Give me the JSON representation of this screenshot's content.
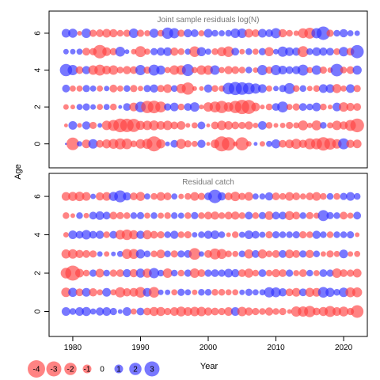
{
  "chart_data": {
    "type": "scatter",
    "bubble_chart": true,
    "shared_axes": {
      "xlabel": "Year",
      "ylabel": "Age",
      "xlim": [
        1976.5,
        2023.5
      ],
      "x_ticks": [
        1980,
        1990,
        2000,
        2010,
        2020
      ],
      "y_ticks": [
        0,
        2,
        4,
        6
      ],
      "ylim": [
        -1.3,
        7.2
      ]
    },
    "year_start": 1979,
    "year_end": 2022,
    "ages": [
      0,
      1,
      2,
      3,
      4,
      5,
      6
    ],
    "colors": {
      "negative": "#ff4040",
      "positive": "#3030ff"
    },
    "panels": [
      {
        "title": "Joint sample residuals log(N)",
        "residuals": [
          [
            0.0,
            -2.1,
            0.4,
            -1.0,
            1.2,
            -0.8,
            -1.1,
            -1.3,
            -1.6,
            -1.5,
            -0.6,
            -1.2,
            -1.4,
            -3.0,
            -1.1,
            0.3,
            0.8,
            -1.3,
            -0.7,
            -0.5,
            0.9,
            -0.2,
            -1.0,
            -3.0,
            -2.4,
            -0.3,
            -2.3,
            -0.4,
            0.2,
            -0.4,
            0.5,
            1.1,
            -0.8,
            -1.0,
            -1.4,
            -0.9,
            -1.6,
            -1.6,
            -2.4,
            -1.8,
            -1.2,
            1.6,
            -0.9,
            -1.0
          ],
          [
            -0.2,
            1.0,
            -0.3,
            0.9,
            -0.7,
            0.3,
            -1.2,
            -1.6,
            -2.5,
            -2.4,
            -2.3,
            -1.1,
            -1.2,
            -1.3,
            -1.0,
            -1.2,
            -0.8,
            -1.0,
            -0.3,
            -0.5,
            0.8,
            -0.2,
            -0.8,
            -1.2,
            -1.0,
            -0.8,
            -0.7,
            -0.9,
            -0.4,
            1.0,
            -0.6,
            -0.3,
            -0.4,
            -0.7,
            -0.5,
            -1.3,
            -0.4,
            -1.3,
            0.6,
            -0.5,
            -1.2,
            -0.9,
            -1.6,
            -2.5
          ],
          [
            -0.4,
            -0.3,
            0.5,
            0.7,
            0.4,
            -0.5,
            0.5,
            -0.6,
            0.2,
            0.8,
            -1.0,
            1.5,
            -2.0,
            -2.1,
            -1.6,
            0.7,
            1.0,
            -0.6,
            0.8,
            1.2,
            -0.3,
            -1.2,
            -1.6,
            -2.0,
            -1.2,
            -2.0,
            -2.7,
            -2.6,
            -1.0,
            -0.3,
            -0.6,
            0.8,
            1.6,
            -0.5,
            -0.7,
            0.8,
            0.6,
            1.0,
            -0.6,
            -0.3,
            1.0,
            -1.2,
            -0.9,
            -0.8
          ],
          [
            0.8,
            -0.5,
            -0.5,
            0.7,
            0.5,
            -0.5,
            0.4,
            -0.8,
            -0.5,
            0.6,
            -0.7,
            -0.4,
            0.7,
            0.9,
            -0.7,
            -1.0,
            0.6,
            -1.2,
            -2.0,
            -0.3,
            -0.3,
            0.9,
            -0.6,
            -0.5,
            1.8,
            2.3,
            2.1,
            1.8,
            1.4,
            1.0,
            -0.5,
            0.4,
            0.7,
            1.6,
            -0.6,
            0.6,
            -0.4,
            -0.6,
            1.0,
            1.0,
            -1.1,
            -0.5,
            1.0,
            -0.7
          ],
          [
            2.0,
            1.4,
            -0.8,
            0.9,
            -1.2,
            -1.6,
            -1.0,
            -1.2,
            -0.6,
            -0.9,
            -0.8,
            1.4,
            -0.7,
            1.6,
            1.1,
            -0.5,
            -1.2,
            -1.2,
            1.9,
            -0.5,
            -1.2,
            -1.2,
            1.2,
            -0.5,
            -0.9,
            -0.8,
            -0.6,
            0.6,
            -0.4,
            1.4,
            -0.7,
            1.4,
            1.0,
            0.8,
            0.9,
            1.6,
            -0.5,
            1.2,
            -0.7,
            -0.4,
            2.1,
            -0.6,
            -0.8,
            1.1
          ],
          [
            0.4,
            0.4,
            0.5,
            -0.8,
            -0.7,
            -2.4,
            -1.0,
            -0.7,
            1.3,
            0.3,
            -0.4,
            -1.6,
            -0.5,
            0.7,
            0.9,
            1.0,
            -0.9,
            -0.6,
            0.5,
            -1.5,
            1.1,
            0.5,
            -0.6,
            -1.1,
            -1.5,
            0.8,
            -0.4,
            0.6,
            -0.5,
            0.7,
            -1.1,
            0.4,
            1.4,
            1.0,
            0.9,
            -1.6,
            0.6,
            1.0,
            0.9,
            0.8,
            -0.6,
            1.2,
            -0.8,
            2.3
          ],
          [
            1.0,
            1.1,
            -0.3,
            1.2,
            -0.7,
            -0.8,
            -1.0,
            -0.9,
            -0.6,
            -0.7,
            1.2,
            -0.7,
            -0.5,
            1.1,
            -0.6,
            1.7,
            1.4,
            -0.7,
            0.9,
            0.8,
            -0.5,
            1.0,
            0.6,
            0.5,
            0.6,
            1.2,
            1.2,
            -1.0,
            -0.8,
            1.0,
            0.8,
            1.4,
            -0.9,
            -0.6,
            -0.4,
            -1.3,
            -1.6,
            1.4,
            2.4,
            -0.7,
            0.6,
            0.9,
            0.5,
            0.4
          ]
        ]
      },
      {
        "title": "Residual catch",
        "residuals": [
          [
            1.0,
            0.6,
            1.0,
            1.1,
            0.5,
            0.9,
            1.0,
            0.7,
            0.3,
            1.0,
            -0.5,
            0.8,
            -0.8,
            -1.1,
            -1.1,
            -0.7,
            -1.0,
            -1.3,
            -1.0,
            -1.2,
            -1.2,
            -0.9,
            -0.8,
            -0.7,
            -1.0,
            1.0,
            -1.2,
            -0.9,
            -0.7,
            -0.6,
            -0.9,
            -0.6,
            -0.7,
            -0.3,
            -1.4,
            -1.4,
            -1.7,
            -0.8,
            -1.1,
            -1.6,
            -1.0,
            -1.3,
            -0.7,
            -2.1
          ],
          [
            -1.2,
            1.1,
            -0.8,
            1.0,
            -0.9,
            -0.5,
            1.0,
            -0.5,
            -1.4,
            -0.9,
            -1.0,
            -1.5,
            1.0,
            -1.5,
            0.4,
            0.4,
            -0.5,
            0.7,
            0.5,
            -0.4,
            0.6,
            0.6,
            -0.6,
            -0.6,
            -0.5,
            -0.5,
            0.4,
            0.7,
            0.5,
            0.5,
            1.4,
            1.3,
            0.9,
            -0.8,
            -1.0,
            0.8,
            -1.1,
            -1.0,
            1.5,
            1.1,
            0.6,
            1.2,
            -1.3,
            -1.3
          ],
          [
            -1.5,
            -3.0,
            -1.0,
            -0.6,
            0.7,
            -1.0,
            0.6,
            -0.7,
            -0.8,
            0.9,
            -0.9,
            1.1,
            -1.1,
            1.4,
            0.6,
            -1.2,
            0.6,
            -0.6,
            0.7,
            -1.2,
            -0.8,
            0.7,
            0.8,
            0.7,
            1.0,
            0.9,
            -0.8,
            -1.1,
            -0.6,
            0.8,
            -0.6,
            -0.9,
            -0.8,
            0.7,
            -0.5,
            -0.8,
            0.6,
            -0.5,
            0.8,
            0.7,
            -1.2,
            -0.8,
            -0.7,
            -1.0
          ],
          [
            -1.1,
            -1.2,
            -0.9,
            -0.8,
            -0.7,
            0.4,
            -0.4,
            0.3,
            0.5,
            -1.3,
            -1.3,
            1.1,
            0.6,
            -0.6,
            -1.0,
            0.6,
            -0.7,
            0.7,
            0.8,
            -1.8,
            0.4,
            -0.8,
            -1.6,
            -1.3,
            -0.6,
            -0.5,
            0.6,
            -1.1,
            0.8,
            -1.1,
            -0.6,
            -0.8,
            0.8,
            -1.0,
            -0.8,
            0.7,
            -0.9,
            0.6,
            -0.4,
            -0.7,
            -0.5,
            1.0,
            -0.4,
            -0.5
          ],
          [
            -0.4,
            1.0,
            0.8,
            1.2,
            0.8,
            0.9,
            -0.6,
            0.8,
            -1.2,
            -1.5,
            -1.1,
            0.9,
            -1.1,
            -0.8,
            -0.7,
            0.6,
            0.9,
            -0.6,
            -0.7,
            0.4,
            0.6,
            0.9,
            1.0,
            0.6,
            -0.3,
            -0.6,
            0.5,
            1.0,
            0.8,
            0.5,
            -0.7,
            0.7,
            0.6,
            0.6,
            0.7,
            -0.7,
            -0.6,
            0.9,
            0.6,
            -0.6,
            0.6,
            0.6,
            0.7,
            -0.3
          ],
          [
            -0.6,
            -0.3,
            0.6,
            -0.4,
            0.8,
            1.0,
            0.8,
            -0.8,
            -0.7,
            -0.6,
            0.6,
            0.7,
            -0.5,
            0.6,
            -0.5,
            -0.6,
            0.6,
            0.5,
            -0.6,
            0.7,
            -0.6,
            -0.8,
            -0.9,
            -0.6,
            -0.8,
            -0.9,
            -0.6,
            0.8,
            -0.6,
            0.7,
            -1.0,
            0.8,
            0.8,
            -1.1,
            -0.8,
            0.6,
            -0.7,
            -0.5,
            1.6,
            0.7,
            0.6,
            -0.8,
            -0.5,
            0.8
          ],
          [
            -1.0,
            -1.1,
            -1.2,
            -1.0,
            0.4,
            -0.9,
            -1.0,
            1.1,
            1.9,
            0.9,
            -0.8,
            -1.1,
            0.5,
            -0.6,
            -1.0,
            -0.8,
            0.5,
            -0.4,
            -0.6,
            -1.0,
            -0.7,
            0.8,
            2.4,
            0.9,
            -0.8,
            -1.2,
            -0.7,
            -1.0,
            0.5,
            0.5,
            0.9,
            -0.8,
            -0.6,
            -1.0,
            -0.8,
            -0.5,
            -0.8,
            -1.0,
            -0.6,
            0.6,
            -0.6,
            0.7,
            1.0,
            0.6
          ]
        ]
      }
    ],
    "legend": {
      "values": [
        -4,
        -3,
        -2,
        -1,
        0,
        1,
        2,
        3
      ],
      "labels": [
        "-4",
        "-3",
        "-2",
        "-1",
        "0",
        "1",
        "2",
        "3"
      ],
      "placement": "bottom-left"
    }
  }
}
